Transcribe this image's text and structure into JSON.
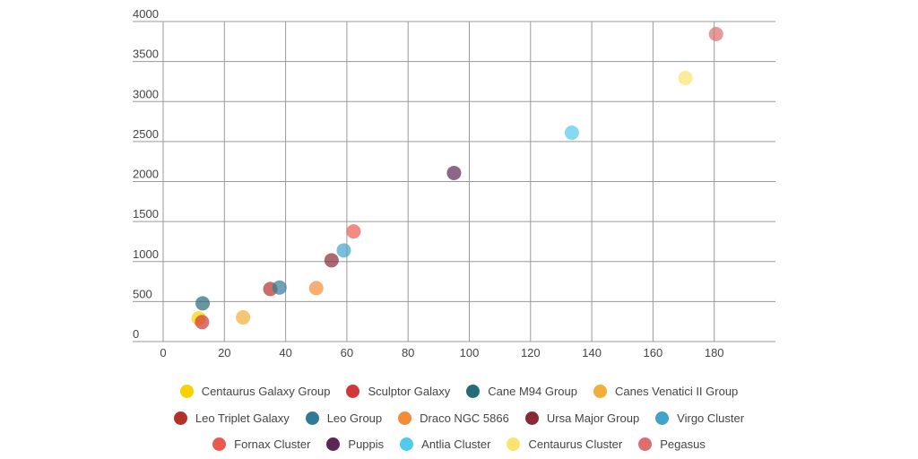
{
  "chart_data": {
    "type": "scatter",
    "title": "",
    "xlabel": "",
    "ylabel": "",
    "xlim": [
      0,
      200
    ],
    "ylim": [
      0,
      4000
    ],
    "x_ticks": [
      "0",
      "20",
      "40",
      "60",
      "80",
      "100",
      "120",
      "140",
      "160",
      "180"
    ],
    "y_ticks": [
      "0",
      "500",
      "1000",
      "1500",
      "2000",
      "2500",
      "3000",
      "3500",
      "4000"
    ],
    "grid": true,
    "legend_position": "bottom",
    "series": [
      {
        "name": "Centaurus Galaxy Group",
        "color": "#f9d100",
        "x": 11.6,
        "y": 290
      },
      {
        "name": "Sculptor Galaxy",
        "color": "#d1363a",
        "x": 12.7,
        "y": 243
      },
      {
        "name": "Cane M94 Group",
        "color": "#256b78",
        "x": 12.9,
        "y": 478
      },
      {
        "name": "Canes Venatici II Group",
        "color": "#f2ae39",
        "x": 26.1,
        "y": 302
      },
      {
        "name": "Leo Triplet Galaxy",
        "color": "#b23128",
        "x": 35,
        "y": 657
      },
      {
        "name": "Leo Group",
        "color": "#2f7a99",
        "x": 38,
        "y": 675
      },
      {
        "name": "Draco NGC 5866",
        "color": "#f28c38",
        "x": 50,
        "y": 668
      },
      {
        "name": "Ursa Major Group",
        "color": "#872a36",
        "x": 55,
        "y": 1016
      },
      {
        "name": "Virgo Cluster",
        "color": "#41a3c9",
        "x": 59,
        "y": 1139
      },
      {
        "name": "Fornax Cluster",
        "color": "#eb5a50",
        "x": 62.2,
        "y": 1377
      },
      {
        "name": "Puppis",
        "color": "#5e2655",
        "x": 95,
        "y": 2107
      },
      {
        "name": "Antlia Cluster",
        "color": "#4fcbeb",
        "x": 133.5,
        "y": 2610
      },
      {
        "name": "Centaurus Cluster",
        "color": "#fce36e",
        "x": 170.6,
        "y": 3294
      },
      {
        "name": "Pegasus",
        "color": "#dc6e6e",
        "x": 180.6,
        "y": 3843
      }
    ]
  },
  "legend_rows": [
    [
      0,
      1,
      2,
      3
    ],
    [
      4,
      5,
      6,
      7,
      8
    ],
    [
      9,
      10,
      11,
      12,
      13
    ]
  ]
}
